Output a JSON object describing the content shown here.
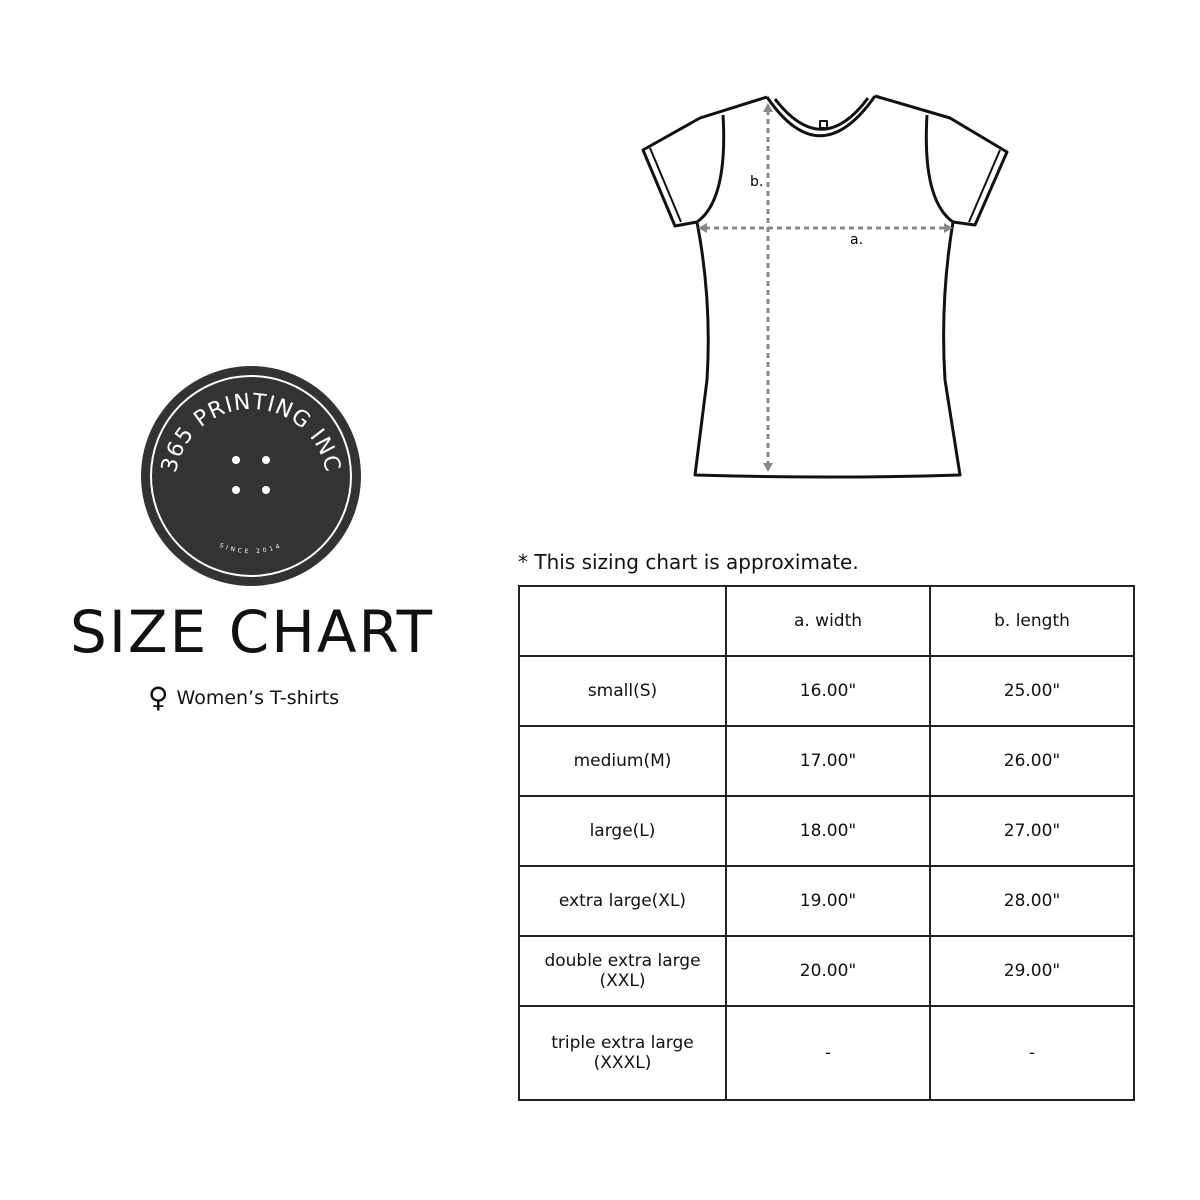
{
  "logo": {
    "text": "365 PRINTING INC",
    "tagline": "SINCE 2014",
    "color": "#333333"
  },
  "title": "SIZE CHART",
  "subtitle": {
    "icon": "female-symbol-icon",
    "text": "Women’s T-shirts"
  },
  "diagram": {
    "width_label": "a.",
    "length_label": "b."
  },
  "note": "* This sizing chart is approximate.",
  "table": {
    "headers": [
      "",
      "a. width",
      "b. length"
    ],
    "rows": [
      {
        "size": "small(S)",
        "width": "16.00\"",
        "length": "25.00\""
      },
      {
        "size": "medium(M)",
        "width": "17.00\"",
        "length": "26.00\""
      },
      {
        "size": "large(L)",
        "width": "18.00\"",
        "length": "27.00\""
      },
      {
        "size": "extra large(XL)",
        "width": "19.00\"",
        "length": "28.00\""
      },
      {
        "size": "double extra large (XXL)",
        "width": "20.00\"",
        "length": "29.00\""
      },
      {
        "size": "triple extra large (XXXL)",
        "width": "-",
        "length": "-"
      }
    ]
  }
}
